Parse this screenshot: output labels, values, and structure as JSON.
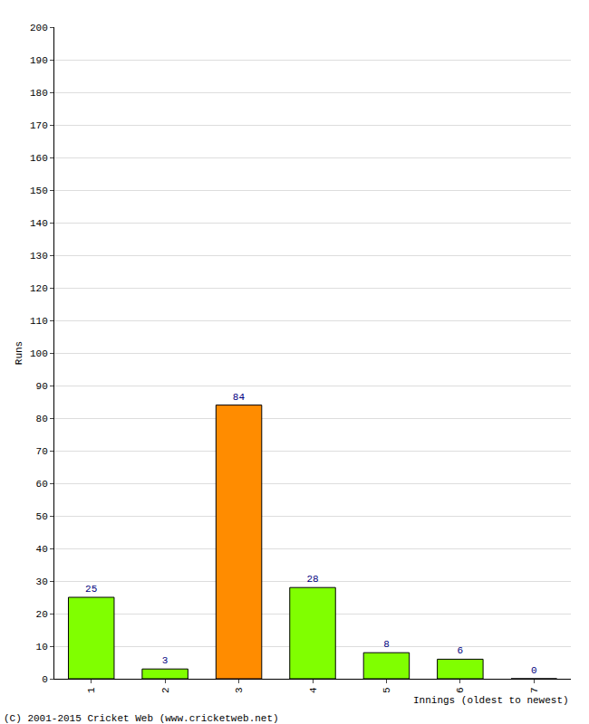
{
  "chart_data": {
    "type": "bar",
    "categories": [
      "1",
      "2",
      "3",
      "4",
      "5",
      "6",
      "7"
    ],
    "values": [
      25,
      3,
      84,
      28,
      8,
      6,
      0
    ],
    "colors": [
      "#80ff00",
      "#80ff00",
      "#ff8c00",
      "#80ff00",
      "#80ff00",
      "#80ff00",
      "#80ff00"
    ],
    "x_label": "Innings (oldest to newest)",
    "y_label": "Runs",
    "ylim": [
      0,
      200
    ],
    "yticks": [
      0,
      10,
      20,
      30,
      40,
      50,
      60,
      70,
      80,
      90,
      100,
      110,
      120,
      130,
      140,
      150,
      160,
      170,
      180,
      190,
      200
    ],
    "grid": true,
    "data_labels": true,
    "annotations": [
      "(C) 2001-2015 Cricket Web (www.cricketweb.net)"
    ]
  }
}
